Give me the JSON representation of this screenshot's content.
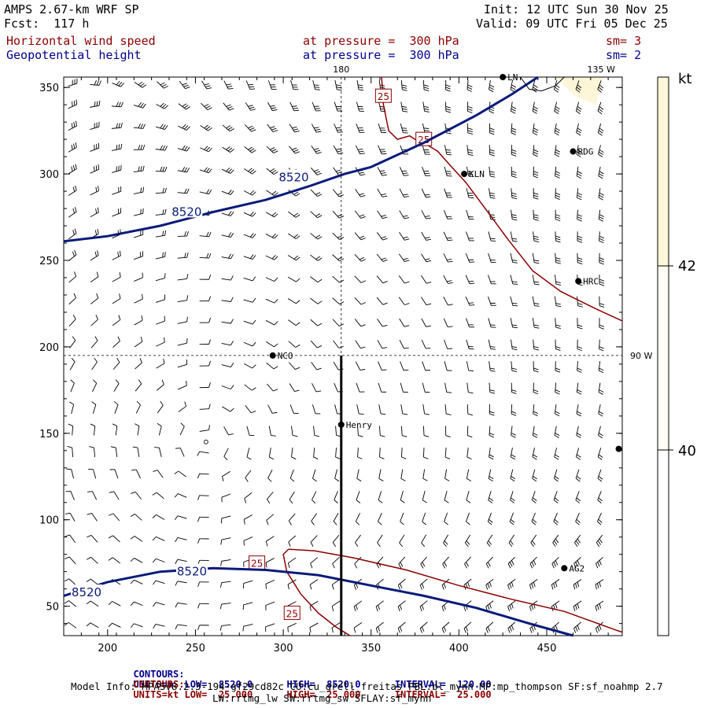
{
  "header": {
    "model": "AMPS 2.67-km WRF SP",
    "fcst": "Fcst:  117 h",
    "init": "Init: 12 UTC Sun 30 Nov 25",
    "valid": "Valid: 09 UTC Fri 05 Dec 25",
    "field1": "Horizontal wind speed",
    "field2": "Geopotential height",
    "level1": "at pressure =  300 hPa",
    "level2": "at pressure =  300 hPa",
    "sm1": "sm= 3",
    "sm2": "sm= 2"
  },
  "colors": {
    "height_contour": "#0a1a7a",
    "speed_contour": "#8b0000",
    "cross_section": "#000000",
    "colorbar_fill": "#fdf6d8"
  },
  "chart_data": {
    "type": "contour",
    "xlim": [
      175,
      493
    ],
    "ylim": [
      33,
      356
    ],
    "xticks": [
      200,
      250,
      300,
      350,
      400,
      450
    ],
    "yticks": [
      50,
      100,
      150,
      200,
      250,
      300,
      350
    ],
    "grid_labels": {
      "top_180": "180",
      "top_135w": "135 W",
      "right_90w": "90 W"
    },
    "height_contours": [
      {
        "value": "8520",
        "label_points": [
          [
            245,
            278
          ],
          [
            306,
            298
          ],
          [
            248,
            70
          ],
          [
            188,
            58
          ]
        ],
        "lines": [
          [
            [
              175,
              261
            ],
            [
              200,
              264
            ],
            [
              230,
              270
            ],
            [
              260,
              278
            ],
            [
              290,
              285
            ],
            [
              315,
              293
            ],
            [
              335,
              300
            ],
            [
              350,
              304
            ],
            [
              380,
              318
            ],
            [
              410,
              334
            ],
            [
              430,
              346
            ],
            [
              445,
              356
            ]
          ],
          [
            [
              175,
              56
            ],
            [
              200,
              64
            ],
            [
              230,
              70
            ],
            [
              260,
              72
            ],
            [
              290,
              71
            ],
            [
              320,
              68
            ],
            [
              350,
              62
            ],
            [
              380,
              56
            ],
            [
              410,
              49
            ],
            [
              440,
              40
            ],
            [
              465,
              33
            ]
          ]
        ]
      },
      {
        "value": "",
        "label_points": [],
        "lines": [
          [
            [
              435,
              356
            ],
            [
              440,
              349
            ],
            [
              447,
              348
            ],
            [
              455,
              351
            ],
            [
              460,
              356
            ]
          ]
        ]
      }
    ],
    "speed_contours": [
      {
        "value": "25",
        "label_points": [
          [
            357,
            345
          ],
          [
            380,
            320
          ],
          [
            285,
            75
          ],
          [
            305,
            46
          ]
        ],
        "lines": [
          [
            [
              356,
              356
            ],
            [
              357,
              340
            ],
            [
              360,
              325
            ],
            [
              365,
              320
            ],
            [
              372,
              322
            ],
            [
              375,
              320
            ],
            [
              380,
              318
            ],
            [
              388,
              313
            ],
            [
              395,
              305
            ],
            [
              404,
              295
            ],
            [
              415,
              280
            ],
            [
              428,
              262
            ],
            [
              442,
              244
            ],
            [
              458,
              232
            ],
            [
              478,
              222
            ],
            [
              493,
              215
            ]
          ],
          [
            [
              303,
              83
            ],
            [
              318,
              82
            ],
            [
              340,
              78
            ],
            [
              370,
              71
            ],
            [
              400,
              62
            ],
            [
              430,
              54
            ],
            [
              460,
              47
            ],
            [
              490,
              36
            ],
            [
              493,
              35
            ]
          ],
          [
            [
              303,
              83
            ],
            [
              300,
              80
            ],
            [
              302,
              70
            ],
            [
              310,
              57
            ],
            [
              320,
              46
            ],
            [
              330,
              38
            ],
            [
              338,
              33
            ]
          ]
        ]
      }
    ],
    "stations": [
      {
        "label": "LN",
        "x": 425,
        "y": 356
      },
      {
        "label": "RDG",
        "x": 465,
        "y": 313
      },
      {
        "label": "KLN",
        "x": 403,
        "y": 300
      },
      {
        "label": "HRC",
        "x": 468,
        "y": 238
      },
      {
        "label": "NCO",
        "x": 294,
        "y": 195
      },
      {
        "label": "Henry",
        "x": 333,
        "y": 155
      },
      {
        "label": "AG2",
        "x": 460,
        "y": 72
      },
      {
        "label": "",
        "x": 491,
        "y": 141
      }
    ],
    "cross_section": {
      "x": 333,
      "y": [
        33,
        195
      ]
    },
    "colorbar": {
      "unit": "kt",
      "ticks": [
        "42",
        "40"
      ]
    }
  },
  "footer": {
    "contours_label": "CONTOURS:",
    "c1": "UNITS=m  LOW=  8520.0      HIGH=  8520.0      INTERVAL=  120.00",
    "c2": "UNITS=kt LOW=  25.000      HIGH=  25.000      INTERVAL=  25.000",
    "model_info": "Model Info: MPASv8.2.3-194-gf29cd82c CU:cu_grell_freitas PBL:bl_mynn MP:mp_thompson SF:sf_noahmp 2.7",
    "model_info2": "LW:rrtmg_lw SW:rrtmg_sw SFLAY:sf_mynn"
  }
}
